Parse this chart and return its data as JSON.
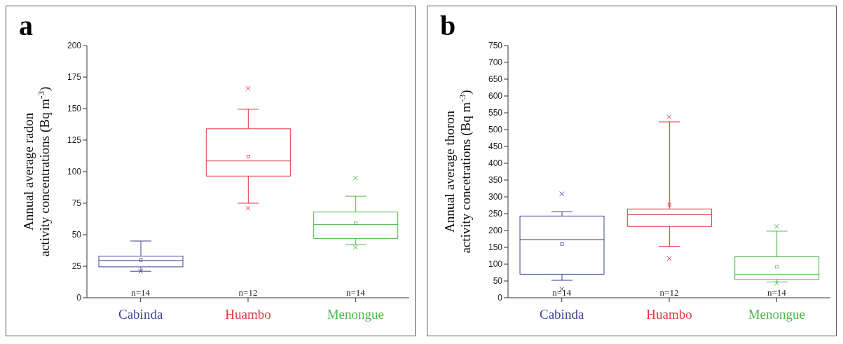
{
  "chart_data": [
    {
      "type": "box",
      "title": "a",
      "ylabel": "Annual average radon activity concentrations (Bq m$^{-3}$)",
      "categories": [
        "Cabinda",
        "Huambo",
        "Menongue"
      ],
      "colors": [
        "#3d4394",
        "#e0393f",
        "#4cb84a"
      ],
      "ylim": [
        0,
        200
      ],
      "yticks": [
        0,
        25,
        50,
        75,
        100,
        125,
        150,
        175,
        200
      ],
      "boxes": [
        {
          "low": 21,
          "q1": 24.5,
          "median": 29.5,
          "q3": 33,
          "high": 45,
          "mean": 30,
          "outliers": [
            21
          ]
        },
        {
          "low": 75,
          "q1": 96.5,
          "median": 108.5,
          "q3": 134,
          "high": 149.5,
          "mean": 112,
          "outliers": [
            71,
            166
          ]
        },
        {
          "low": 42,
          "q1": 47,
          "median": 58,
          "q3": 68,
          "high": 80.5,
          "mean": 59,
          "outliers": [
            40,
            95
          ]
        }
      ],
      "annotations": [
        "n=14",
        "n=12",
        "n=14"
      ]
    },
    {
      "type": "box",
      "title": "b",
      "ylabel": "Annual average thoron activity concetrations (Bq m$^{-3}$)",
      "categories": [
        "Cabinda",
        "Huambo",
        "Menongue"
      ],
      "colors": [
        "#3d4394",
        "#e0393f",
        "#4cb84a"
      ],
      "ylim": [
        0,
        750
      ],
      "yticks": [
        0,
        50,
        100,
        150,
        200,
        250,
        300,
        350,
        400,
        450,
        500,
        550,
        600,
        650,
        700,
        750
      ],
      "boxes": [
        {
          "low": 52,
          "q1": 70,
          "median": 173,
          "q3": 243,
          "high": 256,
          "mean": 160,
          "outliers": [
            26,
            309
          ]
        },
        {
          "low": 153,
          "q1": 212,
          "median": 247,
          "q3": 264,
          "high": 523,
          "mean": 277,
          "outliers": [
            117,
            538
          ]
        },
        {
          "low": 47,
          "q1": 55,
          "median": 70,
          "q3": 122,
          "high": 198,
          "mean": 92,
          "outliers": [
            43,
            212
          ]
        }
      ],
      "annotations": [
        "n=14",
        "n=12",
        "n=14"
      ]
    }
  ]
}
